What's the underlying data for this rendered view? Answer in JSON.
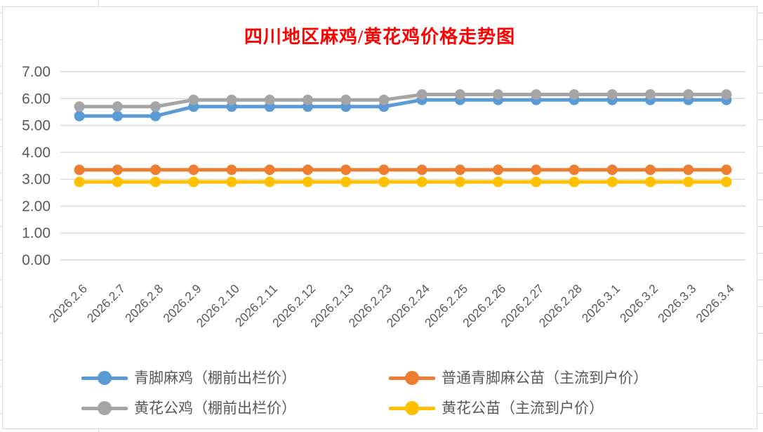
{
  "chart_data": {
    "type": "line",
    "title": "四川地区麻鸡/黄花鸡价格走势图",
    "title_color": "#FF0000",
    "categories": [
      "2026.2.6",
      "2026.2.7",
      "2026.2.8",
      "2026.2.9",
      "2026.2.10",
      "2026.2.11",
      "2026.2.12",
      "2026.2.13",
      "2026.2.23",
      "2026.2.24",
      "2026.2.25",
      "2026.2.26",
      "2026.2.27",
      "2026.2.28",
      "2026.3.1",
      "2026.3.2",
      "2026.3.3",
      "2026.3.4"
    ],
    "series": [
      {
        "name": "青脚麻鸡（棚前出栏价）",
        "color": "#5B9BD5",
        "values": [
          5.35,
          5.35,
          5.35,
          5.7,
          5.7,
          5.7,
          5.7,
          5.7,
          5.7,
          5.95,
          5.95,
          5.95,
          5.95,
          5.95,
          5.95,
          5.95,
          5.95,
          5.95
        ]
      },
      {
        "name": "普通青脚麻公苗（主流到户价）",
        "color": "#ED7D31",
        "values": [
          3.35,
          3.35,
          3.35,
          3.35,
          3.35,
          3.35,
          3.35,
          3.35,
          3.35,
          3.35,
          3.35,
          3.35,
          3.35,
          3.35,
          3.35,
          3.35,
          3.35,
          3.35
        ]
      },
      {
        "name": "黄花公鸡（棚前出栏价）",
        "color": "#A5A5A5",
        "values": [
          5.7,
          5.7,
          5.7,
          5.95,
          5.95,
          5.95,
          5.95,
          5.95,
          5.95,
          6.15,
          6.15,
          6.15,
          6.15,
          6.15,
          6.15,
          6.15,
          6.15,
          6.15
        ]
      },
      {
        "name": "黄花公苗（主流到户价）",
        "color": "#FFC000",
        "values": [
          2.9,
          2.9,
          2.9,
          2.9,
          2.9,
          2.9,
          2.9,
          2.9,
          2.9,
          2.9,
          2.9,
          2.9,
          2.9,
          2.9,
          2.9,
          2.9,
          2.9,
          2.9
        ]
      }
    ],
    "xlabel": "",
    "ylabel": "",
    "ylim": [
      0,
      7
    ],
    "y_tick_labels": [
      "0.00",
      "1.00",
      "2.00",
      "3.00",
      "4.00",
      "5.00",
      "6.00",
      "7.00"
    ],
    "grid": "horizontal",
    "gridline_color": "#D9D9D9",
    "axis_label_color": "#595959",
    "legend_position": "bottom"
  }
}
